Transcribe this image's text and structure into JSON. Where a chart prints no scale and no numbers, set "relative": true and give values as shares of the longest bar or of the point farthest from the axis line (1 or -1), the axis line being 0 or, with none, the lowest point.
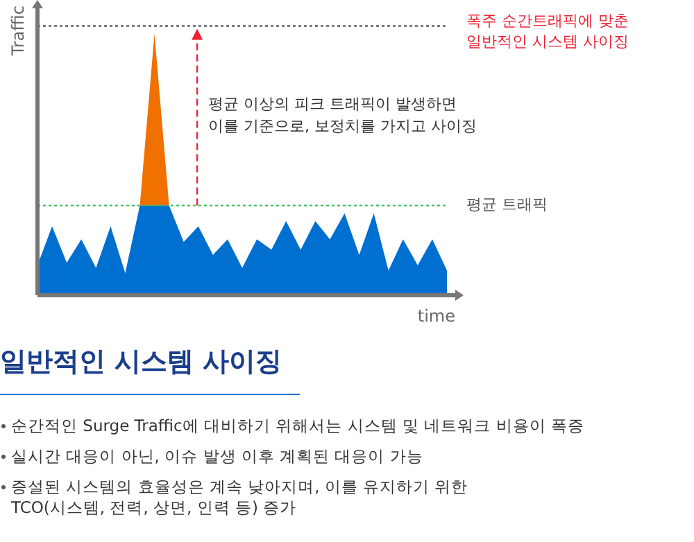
{
  "chart_data": {
    "type": "area",
    "title": "일반적인 시스템 사이징",
    "xlabel": "time",
    "ylabel": "Traffic",
    "relative": true,
    "stacked": true,
    "legend": false,
    "categories": [
      null,
      null,
      null,
      null,
      null,
      null,
      null,
      null,
      null,
      null,
      null,
      null,
      null,
      null,
      null,
      null,
      null,
      null,
      null,
      null,
      null,
      null,
      null,
      null,
      null,
      null,
      null,
      null,
      null
    ],
    "series": [
      {
        "color": "#0070d0",
        "values": [
          0.11,
          0.26,
          0.12,
          0.21,
          0.1,
          0.26,
          0.08,
          0.34,
          0.34,
          0.34,
          0.2,
          0.26,
          0.15,
          0.21,
          0.1,
          0.21,
          0.17,
          0.28,
          0.17,
          0.28,
          0.21,
          0.31,
          0.15,
          0.31,
          0.09,
          0.21,
          0.11,
          0.21,
          0.09
        ]
      },
      {
        "color": "#f07000",
        "values": [
          null,
          null,
          null,
          null,
          null,
          null,
          null,
          0,
          0.66,
          0,
          null,
          null,
          null,
          null,
          null,
          null,
          null,
          null,
          null,
          null,
          null,
          null,
          null,
          null,
          null,
          null,
          null,
          null,
          null
        ]
      }
    ],
    "ref_lines": [
      {
        "axis": "y",
        "value": 1.03,
        "label": "폭주 순간트래픽에 맞춘\n일반적인 시스템 사이징",
        "color": "#333333",
        "line_style": "dotted"
      },
      {
        "axis": "y",
        "value": 0.34,
        "label": "평균 트래픽",
        "color": "#33bb55",
        "line_style": "dotted"
      }
    ],
    "annotations": [
      "평균 이상의 피크 트래픽이 발생하면\n이를 기준으로, 보정치를 가지고 사이징",
      "순간적인 Surge Traffic에 대비하기 위해서는 시스템 및 네트워크 비용이 폭증",
      "실시간 대응이 아닌, 이슈 발생 이후 계획된 대응이 가능",
      "증설된 시스템의 효율성은 계속 낮아지며, 이를 유지하기 위한\nTCO(시스템, 전력, 상면, 인력 등) 증가"
    ]
  }
}
